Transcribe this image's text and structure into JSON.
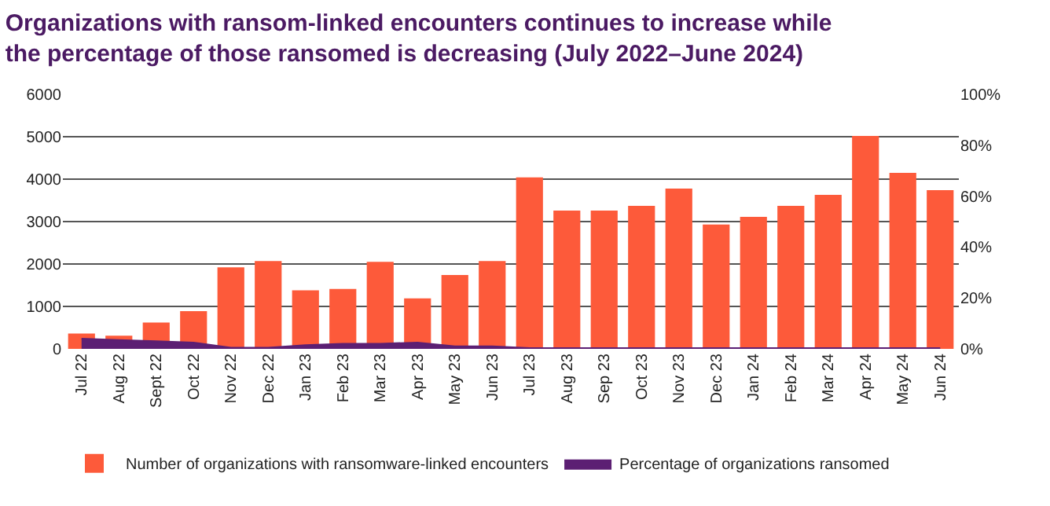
{
  "chart_data": {
    "type": "bar",
    "title": "Organizations with ransom-linked encounters continues to increase while the percentage of those ransomed is decreasing (July 2022–June 2024)",
    "categories": [
      "Jul 22",
      "Aug 22",
      "Sept 22",
      "Oct 22",
      "Nov 22",
      "Dec 22",
      "Jan 23",
      "Feb 23",
      "Mar 23",
      "Apr 23",
      "May 23",
      "Jun 23",
      "Jul 23",
      "Aug 23",
      "Sep 23",
      "Oct 23",
      "Nov 23",
      "Dec 23",
      "Jan 24",
      "Feb 24",
      "Mar 24",
      "Apr 24",
      "May 24",
      "Jun 24"
    ],
    "series": [
      {
        "name": "Number of organizations with ransomware-linked encounters",
        "color": "#fd5a3a",
        "values": [
          360,
          310,
          620,
          890,
          1920,
          2070,
          1380,
          1410,
          2050,
          1190,
          1740,
          2070,
          4040,
          3260,
          3260,
          3370,
          3780,
          2930,
          3110,
          3370,
          3630,
          5020,
          4150,
          3740
        ]
      },
      {
        "name": "Percentage of organizations ransomed",
        "color": "#5c1f73",
        "type": "area",
        "axis": "y2",
        "values": [
          4,
          3.5,
          3,
          2.5,
          0.5,
          0.5,
          1.5,
          2,
          2,
          2.5,
          1,
          1,
          0.3,
          0.3,
          0.3,
          0.3,
          0.3,
          0.3,
          0.3,
          0.3,
          0.3,
          0.3,
          0.3,
          0.3
        ]
      }
    ],
    "ylim": [
      0,
      6000
    ],
    "yticks": [
      0,
      1000,
      2000,
      3000,
      4000,
      5000,
      6000
    ],
    "y2lim": [
      0,
      100
    ],
    "y2ticks": [
      {
        "value": 0,
        "label": "0%"
      },
      {
        "value": 20,
        "label": "20%"
      },
      {
        "value": 40,
        "label": "40%"
      },
      {
        "value": 60,
        "label": "60%"
      },
      {
        "value": 80,
        "label": "80%"
      },
      {
        "value": 100,
        "label": "100%"
      }
    ],
    "grid": "y",
    "legend": "bottom"
  }
}
